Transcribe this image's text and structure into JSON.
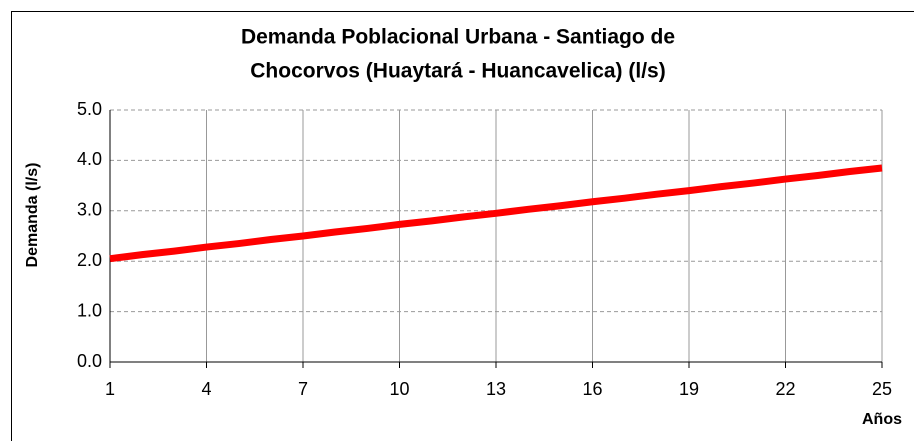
{
  "chart_data": {
    "type": "line",
    "title": [
      "Demanda Poblacional Urbana - Santiago de",
      "Chocorvos (Huaytará - Huancavelica) (l/s)"
    ],
    "xlabel": "Años",
    "ylabel": "Demanda (l/s)",
    "x": [
      1,
      2,
      3,
      4,
      5,
      6,
      7,
      8,
      9,
      10,
      11,
      12,
      13,
      14,
      15,
      16,
      17,
      18,
      19,
      20,
      21,
      22,
      23,
      24,
      25
    ],
    "series": [
      {
        "name": "Demanda",
        "color": "#ff0000",
        "values": [
          2.05,
          2.13,
          2.2,
          2.28,
          2.35,
          2.43,
          2.5,
          2.58,
          2.65,
          2.73,
          2.8,
          2.88,
          2.95,
          3.03,
          3.1,
          3.18,
          3.25,
          3.33,
          3.4,
          3.48,
          3.55,
          3.63,
          3.7,
          3.78,
          3.85
        ]
      }
    ],
    "xlim": [
      1,
      25
    ],
    "xticks": [
      1,
      4,
      7,
      10,
      13,
      16,
      19,
      22,
      25
    ],
    "ylim": [
      0,
      5
    ],
    "yticks": [
      {
        "value": 0,
        "label": "0.0"
      },
      {
        "value": 1,
        "label": "1.0"
      },
      {
        "value": 2,
        "label": "2.0"
      },
      {
        "value": 3,
        "label": "3.0"
      },
      {
        "value": 4,
        "label": "4.0"
      },
      {
        "value": 5,
        "label": "5.0"
      }
    ],
    "grid": true
  }
}
